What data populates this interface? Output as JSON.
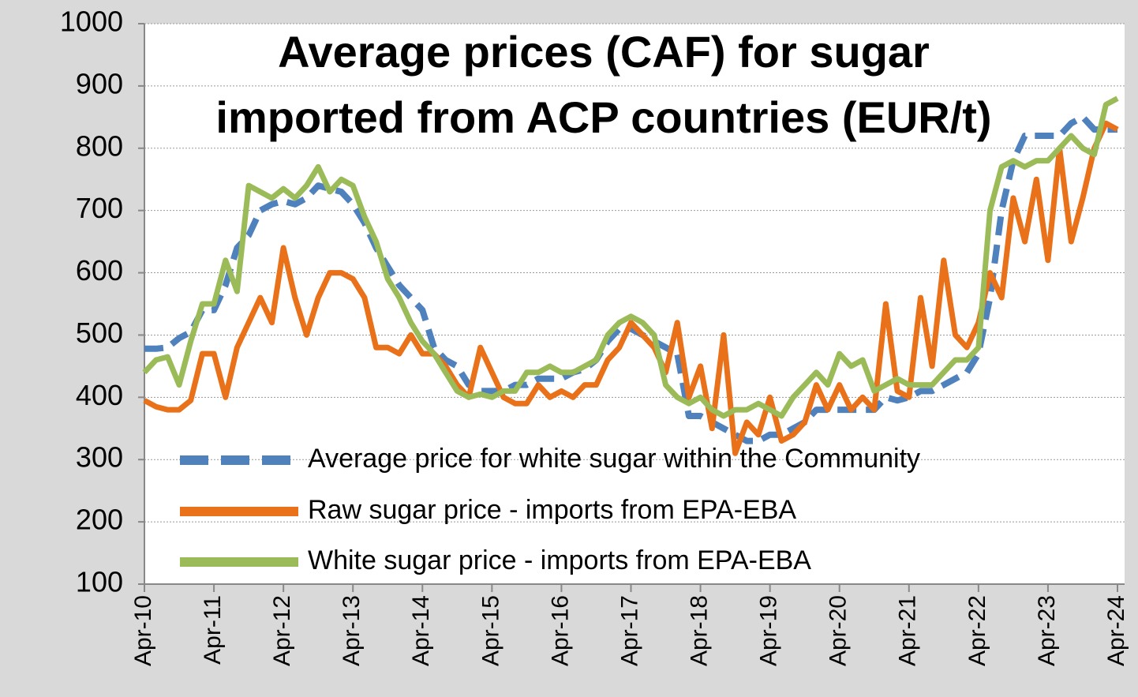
{
  "chart_data": {
    "type": "line",
    "title": [
      "Average prices (CAF) for sugar",
      "imported from ACP countries (EUR/t)"
    ],
    "categories": [
      "Apr-10",
      null,
      null,
      null,
      null,
      null,
      "Apr-11",
      null,
      null,
      null,
      null,
      null,
      "Apr-12",
      null,
      null,
      null,
      null,
      null,
      "Apr-13",
      null,
      null,
      null,
      null,
      null,
      "Apr-14",
      null,
      null,
      null,
      null,
      null,
      "Apr-15",
      null,
      null,
      null,
      null,
      null,
      "Apr-16",
      null,
      null,
      null,
      null,
      null,
      "Apr-17",
      null,
      null,
      null,
      null,
      null,
      "Apr-18",
      null,
      null,
      null,
      null,
      null,
      "Apr-19",
      null,
      null,
      null,
      null,
      null,
      "Apr-20",
      null,
      null,
      null,
      null,
      null,
      "Apr-21",
      null,
      null,
      null,
      null,
      null,
      "Apr-22",
      null,
      null,
      null,
      null,
      null,
      "Apr-23",
      null,
      null,
      null,
      null,
      null,
      "Apr-24"
    ],
    "series": [
      {
        "name": "Average price for white sugar within the Community",
        "color": "#4f81bd",
        "dashed": true,
        "values": [
          478,
          478,
          480,
          495,
          505,
          540,
          540,
          580,
          640,
          660,
          700,
          710,
          715,
          710,
          720,
          740,
          735,
          730,
          710,
          680,
          640,
          610,
          580,
          560,
          540,
          480,
          460,
          450,
          420,
          410,
          410,
          410,
          420,
          420,
          430,
          430,
          430,
          440,
          445,
          460,
          490,
          510,
          510,
          500,
          490,
          480,
          470,
          370,
          370,
          360,
          350,
          340,
          330,
          330,
          340,
          340,
          350,
          360,
          380,
          380,
          380,
          380,
          380,
          380,
          400,
          395,
          400,
          410,
          410,
          420,
          430,
          440,
          470,
          560,
          700,
          780,
          820,
          820,
          820,
          820,
          840,
          850,
          830,
          830,
          830
        ]
      },
      {
        "name": "Raw sugar price - imports from EPA-EBA",
        "color": "#e8711a",
        "dashed": false,
        "values": [
          395,
          385,
          380,
          380,
          395,
          470,
          470,
          400,
          480,
          520,
          560,
          520,
          640,
          560,
          500,
          560,
          600,
          600,
          590,
          560,
          480,
          480,
          470,
          500,
          470,
          470,
          450,
          420,
          400,
          480,
          440,
          400,
          390,
          390,
          420,
          400,
          410,
          400,
          420,
          420,
          460,
          480,
          520,
          500,
          480,
          440,
          520,
          400,
          450,
          350,
          500,
          310,
          360,
          340,
          400,
          330,
          340,
          360,
          420,
          380,
          420,
          380,
          400,
          380,
          550,
          410,
          400,
          560,
          450,
          620,
          500,
          480,
          520,
          600,
          560,
          720,
          650,
          750,
          620,
          800,
          650,
          720,
          800,
          840,
          830
        ]
      },
      {
        "name": "White sugar price - imports from EPA-EBA",
        "color": "#9bbb59",
        "dashed": false,
        "values": [
          440,
          460,
          465,
          420,
          490,
          550,
          550,
          620,
          570,
          740,
          730,
          720,
          735,
          720,
          740,
          770,
          730,
          750,
          740,
          690,
          650,
          590,
          560,
          520,
          490,
          470,
          440,
          410,
          400,
          405,
          400,
          410,
          410,
          440,
          440,
          450,
          440,
          440,
          450,
          460,
          500,
          520,
          530,
          520,
          500,
          420,
          400,
          390,
          400,
          380,
          370,
          380,
          380,
          390,
          380,
          370,
          400,
          420,
          440,
          420,
          470,
          450,
          460,
          410,
          420,
          430,
          420,
          420,
          420,
          440,
          460,
          460,
          480,
          700,
          770,
          780,
          770,
          780,
          780,
          800,
          820,
          800,
          790,
          870,
          880
        ]
      }
    ],
    "ylim": [
      100,
      1000
    ],
    "yticks": [
      100,
      200,
      300,
      400,
      500,
      600,
      700,
      800,
      900,
      1000
    ],
    "grid": true
  }
}
